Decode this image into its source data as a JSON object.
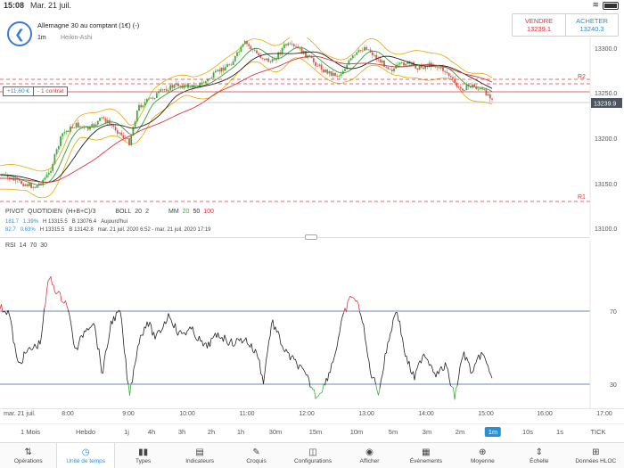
{
  "status_bar": {
    "time": "15:08",
    "date": "Mar. 21 juil."
  },
  "header": {
    "title": "Allemagne 30 au comptant (1€) (-)",
    "timeframe": "1m",
    "chart_type": "Heikin-Ashi"
  },
  "trade": {
    "sell_label": "VENDRE",
    "sell_price": "13239.1",
    "buy_label": "ACHETER",
    "buy_price": "13240.3",
    "sell_color": "#d9363e",
    "buy_color": "#2b8fd6"
  },
  "position": {
    "pnl": "+11,60 €",
    "size": "- 1 contrat"
  },
  "main_axis": {
    "labels": [
      "13300.0",
      "13250.0",
      "13200.0",
      "13150.0",
      "13100.0"
    ],
    "current_price": "13239.9",
    "r2_label": "R2",
    "r1_label": "R1"
  },
  "legend": {
    "pivot_name": "PIVOT",
    "pivot_period": "QUOTIDIEN",
    "pivot_formula": "(H+B+C)/3",
    "boll_name": "BOLL",
    "boll_p1": "20",
    "boll_p2": "2",
    "mm_name": "MM",
    "mm_p1": "20",
    "mm_p2": "50",
    "mm_p3": "100",
    "row2": {
      "change": "181.7",
      "pct": "1.39%",
      "high": "H 13315.5",
      "low": "B 13076.4",
      "when": "Aujourd'hui"
    },
    "row3": {
      "change": "82.7",
      "pct": "0.63%",
      "high": "H 13315.5",
      "low": "B 13142.8",
      "when": "mar. 21 juil. 2020 6:52 - mar. 21 juil. 2020 17:19"
    }
  },
  "rsi": {
    "name": "RSI",
    "p1": "14",
    "p2": "70",
    "p3": "30",
    "level_high": "70",
    "level_low": "30"
  },
  "time_axis": {
    "date": "mar. 21 juil.",
    "ticks": [
      "8:00",
      "9:00",
      "10:00",
      "11:00",
      "12:00",
      "13:00",
      "14:00",
      "15:00",
      "16:00",
      "17:00"
    ]
  },
  "timeframes": [
    "1 Mois",
    "Hebdo",
    "1j",
    "4h",
    "3h",
    "2h",
    "1h",
    "30m",
    "15m",
    "10m",
    "5m",
    "3m",
    "2m",
    "1m",
    "10s",
    "1s",
    "TICK"
  ],
  "active_timeframe": "1m",
  "toolbar": [
    {
      "label": "Opérations",
      "icon": "swap-arrows-icon"
    },
    {
      "label": "Unité de temps",
      "icon": "clock-icon"
    },
    {
      "label": "Types",
      "icon": "candles-icon"
    },
    {
      "label": "Indicateurs",
      "icon": "indicators-icon"
    },
    {
      "label": "Croquis",
      "icon": "pencil-icon"
    },
    {
      "label": "Configurations",
      "icon": "layout-icon"
    },
    {
      "label": "Afficher",
      "icon": "eye-icon"
    },
    {
      "label": "Événements",
      "icon": "calendar-icon"
    },
    {
      "label": "Moyenne",
      "icon": "average-icon"
    },
    {
      "label": "Échelle",
      "icon": "scale-icon"
    },
    {
      "label": "Données HLOC",
      "icon": "table-icon"
    }
  ],
  "active_tool": "Unité de temps",
  "colors": {
    "up": "#3cae3c",
    "down": "#e05656",
    "boll": "#e6a700",
    "accent": "#2b8fd6"
  }
}
